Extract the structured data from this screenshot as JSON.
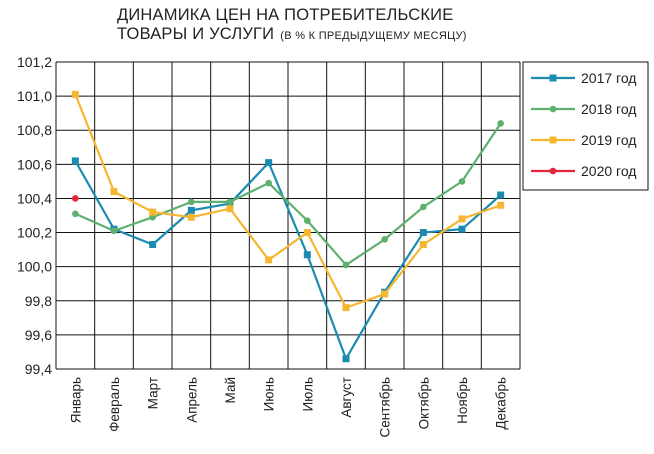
{
  "chart_data": {
    "type": "line",
    "title": "ДИНАМИКА ЦЕН НА ПОТРЕБИТЕЛЬСКИЕ",
    "title_line2": "ТОВАРЫ И УСЛУГИ",
    "subtitle": "(В % К ПРЕДЫДУЩЕМУ МЕСЯЦУ)",
    "categories": [
      "Январь",
      "Февраль",
      "Март",
      "Апрель",
      "Май",
      "Июнь",
      "Июль",
      "Август",
      "Сентябрь",
      "Октябрь",
      "Ноябрь",
      "Декабрь"
    ],
    "ylim": [
      99.4,
      101.2
    ],
    "yticks": [
      99.4,
      99.6,
      99.8,
      100.0,
      100.2,
      100.4,
      100.6,
      100.8,
      101.0,
      101.2
    ],
    "ytick_labels": [
      "99,4",
      "99,6",
      "99,8",
      "100,0",
      "100,2",
      "100,4",
      "100,6",
      "100,8",
      "101,0",
      "101,2"
    ],
    "grid": true,
    "legend_position": "right",
    "series": [
      {
        "name": "2017 год",
        "color": "#1b8bb0",
        "marker": "square",
        "values": [
          100.62,
          100.22,
          100.13,
          100.33,
          100.37,
          100.61,
          100.07,
          99.46,
          99.85,
          100.2,
          100.22,
          100.42
        ]
      },
      {
        "name": "2018 год",
        "color": "#5fb06f",
        "marker": "circle",
        "values": [
          100.31,
          100.21,
          100.29,
          100.38,
          100.38,
          100.49,
          100.27,
          100.01,
          100.16,
          100.35,
          100.5,
          100.84
        ]
      },
      {
        "name": "2019 год",
        "color": "#f5b731",
        "marker": "square",
        "values": [
          101.01,
          100.44,
          100.32,
          100.29,
          100.34,
          100.04,
          100.2,
          99.76,
          99.84,
          100.13,
          100.28,
          100.36
        ]
      },
      {
        "name": "2020 год",
        "color": "#e2253a",
        "marker": "circle",
        "values": [
          100.4,
          null,
          null,
          null,
          null,
          null,
          null,
          null,
          null,
          null,
          null,
          null
        ]
      }
    ]
  }
}
